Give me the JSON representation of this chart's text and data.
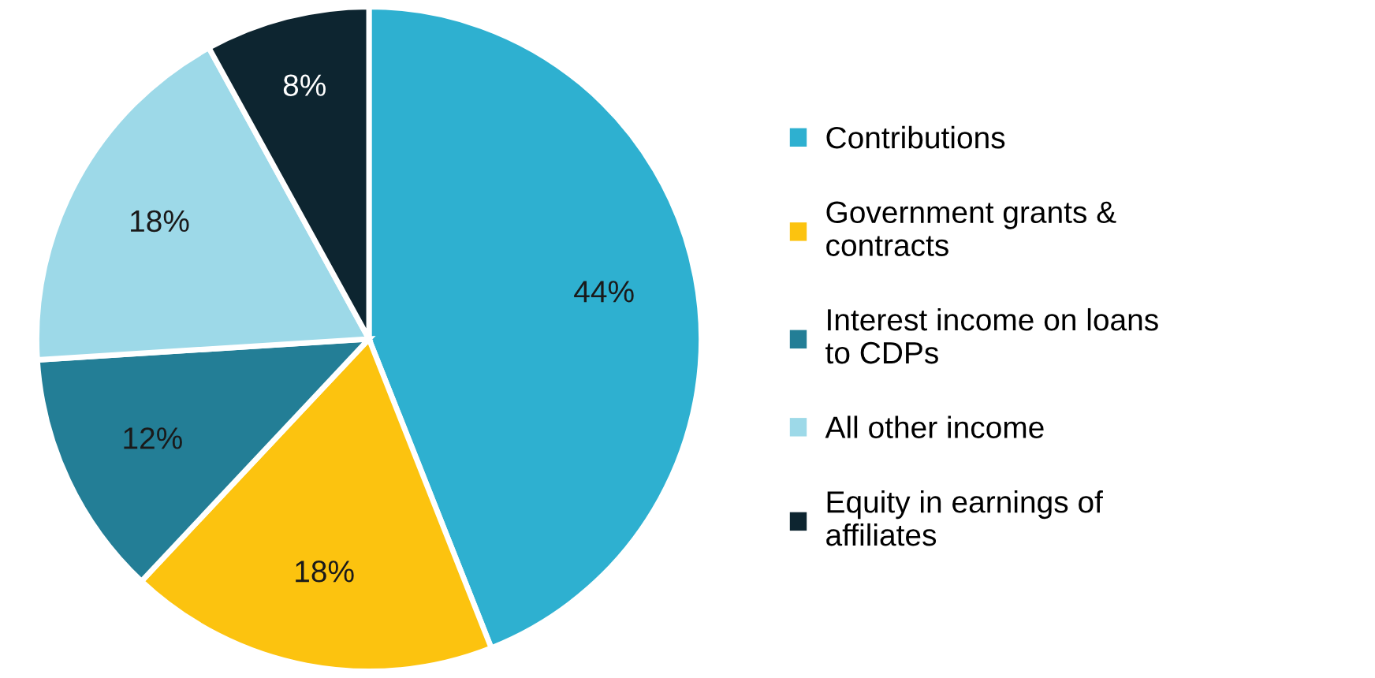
{
  "chart_data": {
    "type": "pie",
    "categories": [
      "Contributions",
      "Government grants &\ncontracts",
      "Interest income on loans\nto CDPs",
      "All other income",
      "Equity in earnings of\naffiliates"
    ],
    "values": [
      44,
      18,
      12,
      18,
      8
    ],
    "colors": [
      "#2eb0d0",
      "#fcc30f",
      "#237e96",
      "#9dd9e8",
      "#0d2530"
    ],
    "value_labels": [
      "44%",
      "18%",
      "12%",
      "18%",
      "8%"
    ],
    "legend": "right"
  }
}
